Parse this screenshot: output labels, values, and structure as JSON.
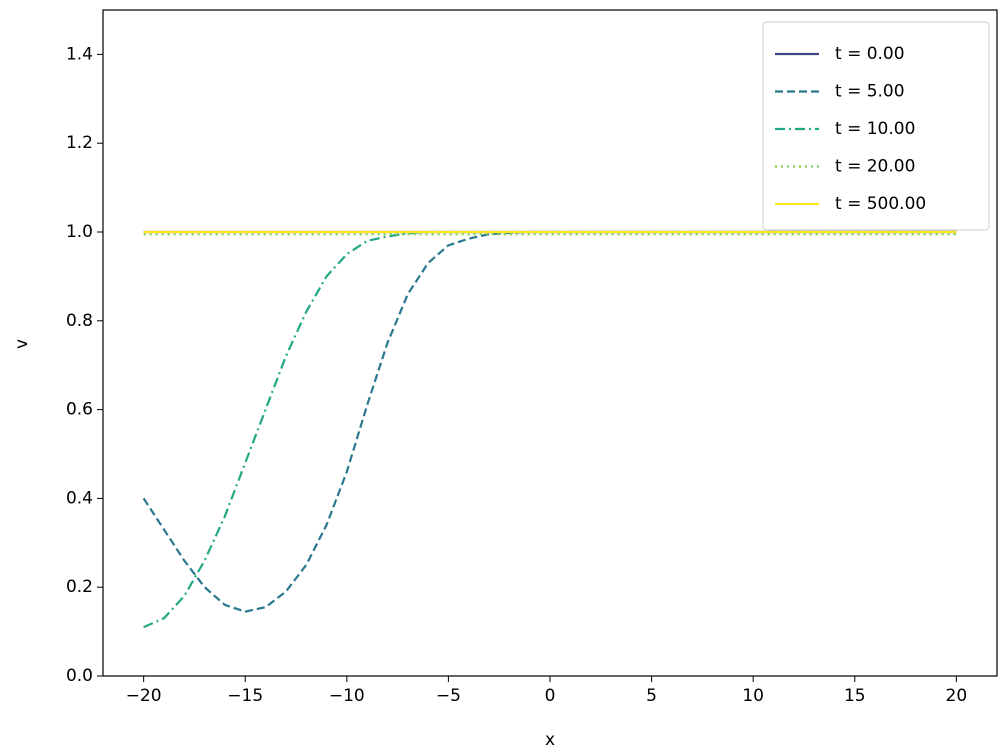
{
  "chart_data": {
    "type": "line",
    "x_label": "x",
    "y_label": "v",
    "x": [
      -20,
      -19,
      -18,
      -17,
      -16,
      -15,
      -14,
      -13,
      -12,
      -11,
      -10,
      -9,
      -8,
      -7,
      -6,
      -5,
      -4,
      -3,
      -2,
      -1,
      0,
      1,
      2,
      3,
      4,
      5,
      6,
      7,
      8,
      9,
      10,
      11,
      12,
      13,
      14,
      15,
      16,
      17,
      18,
      19,
      20
    ],
    "series": [
      {
        "name": "t = 0.00",
        "color": "#414487",
        "linestyle": "solid",
        "values": [
          1,
          1,
          1,
          1,
          1,
          1,
          1,
          1,
          1,
          1,
          1,
          1,
          1,
          1,
          1,
          1,
          1,
          1,
          1,
          1,
          1,
          1,
          1,
          1,
          1,
          1,
          1,
          1,
          1,
          1,
          1,
          1,
          1,
          1,
          1,
          1,
          1,
          1,
          1,
          1,
          1
        ]
      },
      {
        "name": "t = 5.00",
        "color": "#2a788e",
        "linestyle": "dashed",
        "values": [
          0.4,
          0.33,
          0.26,
          0.2,
          0.16,
          0.145,
          0.155,
          0.19,
          0.25,
          0.34,
          0.46,
          0.61,
          0.75,
          0.86,
          0.93,
          0.97,
          0.985,
          0.995,
          0.998,
          1,
          1,
          1,
          1,
          1,
          1,
          1,
          1,
          1,
          1,
          1,
          1,
          1,
          1,
          1,
          1,
          1,
          1,
          1,
          1,
          1,
          1
        ]
      },
      {
        "name": "t = 10.00",
        "color": "#22a884",
        "linestyle": "dashdot",
        "values": [
          0.11,
          0.13,
          0.18,
          0.26,
          0.36,
          0.48,
          0.6,
          0.72,
          0.82,
          0.9,
          0.95,
          0.98,
          0.99,
          0.997,
          1,
          1,
          1,
          1,
          1,
          1,
          1,
          1,
          1,
          1,
          1,
          1,
          1,
          1,
          1,
          1,
          1,
          1,
          1,
          1,
          1,
          1,
          1,
          1,
          1,
          1,
          1
        ]
      },
      {
        "name": "t = 20.00",
        "color": "#7ad151",
        "linestyle": "dotted",
        "values": [
          0.995,
          0.995,
          0.995,
          0.995,
          0.995,
          0.995,
          0.995,
          0.995,
          0.995,
          0.995,
          0.995,
          0.995,
          0.995,
          0.995,
          0.995,
          0.995,
          0.995,
          0.995,
          0.995,
          0.995,
          0.995,
          0.995,
          0.995,
          0.995,
          0.995,
          0.995,
          0.995,
          0.995,
          0.995,
          0.995,
          0.995,
          0.995,
          0.995,
          0.995,
          0.995,
          0.995,
          0.995,
          0.995,
          0.995,
          0.995,
          0.995
        ]
      },
      {
        "name": "t = 500.00",
        "color": "#fde725",
        "linestyle": "solid",
        "values": [
          1,
          1,
          1,
          1,
          1,
          1,
          1,
          1,
          1,
          1,
          1,
          1,
          1,
          1,
          1,
          1,
          1,
          1,
          1,
          1,
          1,
          1,
          1,
          1,
          1,
          1,
          1,
          1,
          1,
          1,
          1,
          1,
          1,
          1,
          1,
          1,
          1,
          1,
          1,
          1,
          1
        ]
      }
    ],
    "xlim": [
      -22,
      22
    ],
    "xticks": [
      {
        "value": -20,
        "label": "−20"
      },
      {
        "value": -15,
        "label": "−15"
      },
      {
        "value": -10,
        "label": "−10"
      },
      {
        "value": -5,
        "label": "−5"
      },
      0,
      5,
      10,
      15,
      20
    ],
    "ylim": [
      0,
      1.5
    ],
    "yticks": [
      {
        "value": 0,
        "label": "0.0"
      },
      0.2,
      0.4,
      0.6,
      0.8,
      {
        "value": 1,
        "label": "1.0"
      },
      1.2,
      1.4
    ],
    "grid": false,
    "legend": "upper right"
  }
}
